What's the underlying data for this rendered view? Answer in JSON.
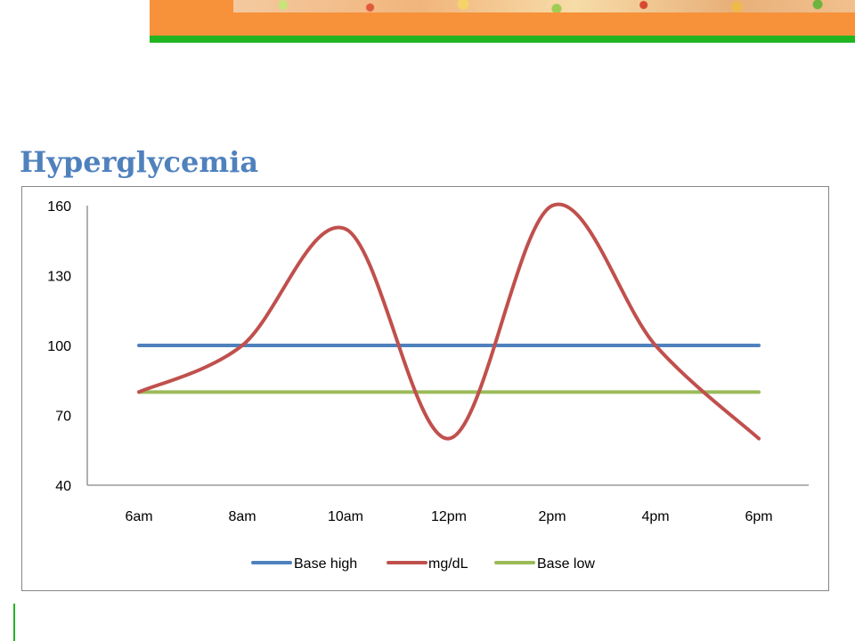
{
  "slide": {
    "title": "Hyperglycemia"
  },
  "chart_data": {
    "type": "line",
    "categories": [
      "6am",
      "8am",
      "10am",
      "12pm",
      "2pm",
      "4pm",
      "6pm"
    ],
    "ylim": [
      40,
      160
    ],
    "yticks": [
      40,
      70,
      100,
      130,
      160
    ],
    "legend_position": "bottom",
    "grid": false,
    "series": [
      {
        "name": "Base high",
        "color": "#4f81bd",
        "smooth": false,
        "values": [
          100,
          100,
          100,
          100,
          100,
          100,
          100
        ]
      },
      {
        "name": "mg/dL",
        "color": "#c0504d",
        "smooth": true,
        "values": [
          80,
          100,
          150,
          60,
          160,
          100,
          60
        ]
      },
      {
        "name": "Base low",
        "color": "#9bbb59",
        "smooth": false,
        "values": [
          80,
          80,
          80,
          80,
          80,
          80,
          80
        ]
      }
    ]
  }
}
